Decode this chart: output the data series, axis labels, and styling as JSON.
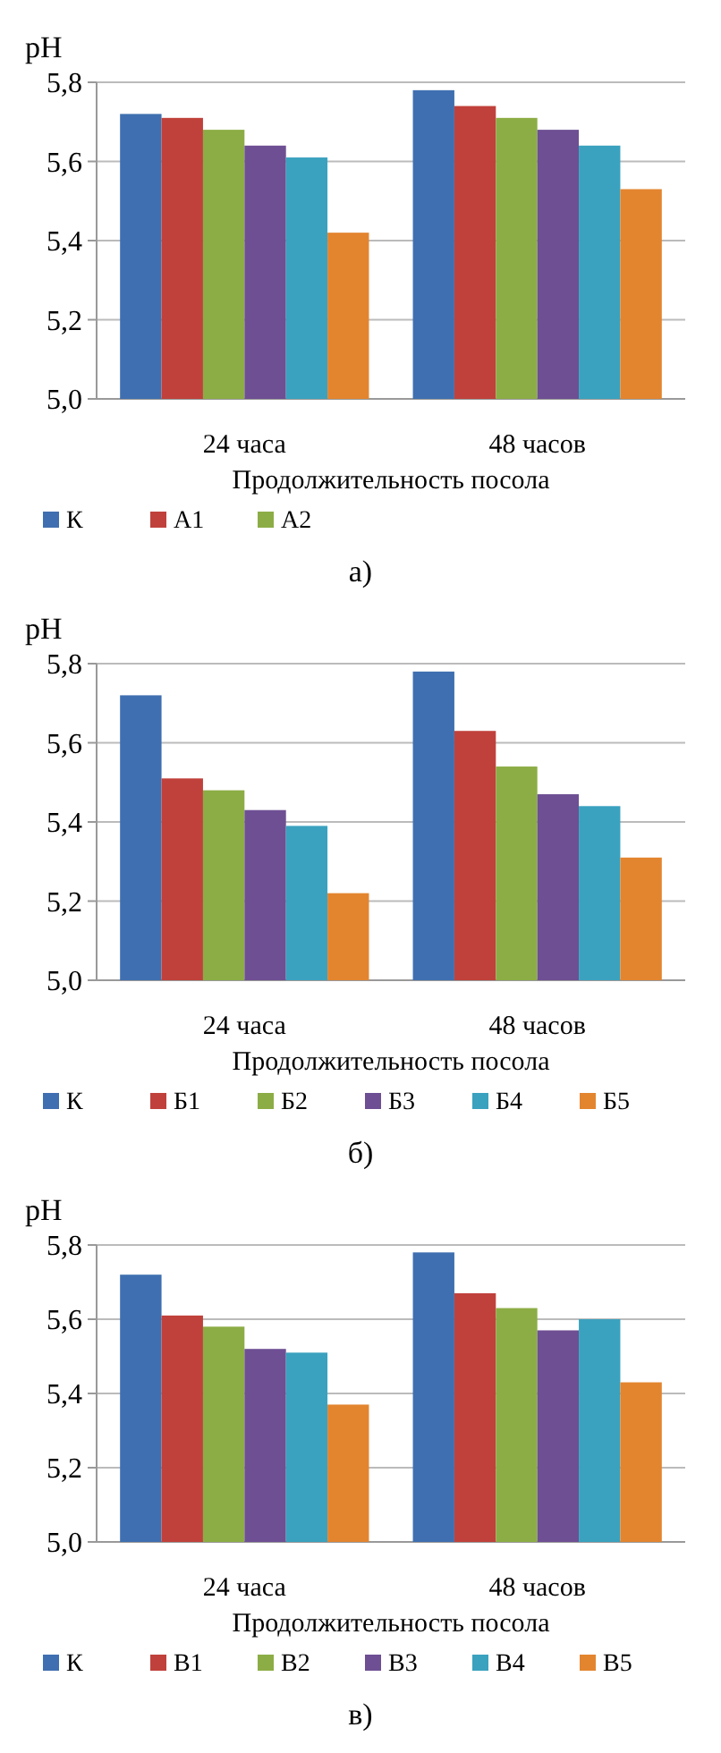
{
  "chart_data": [
    {
      "type": "bar",
      "ylabel": "pH",
      "xlabel": "Продолжительность посола",
      "categories": [
        "24 часа",
        "48 часов"
      ],
      "ylim": [
        5.0,
        5.8
      ],
      "yticks": [
        {
          "value": 5.0,
          "label": "5,0"
        },
        {
          "value": 5.2,
          "label": "5,2"
        },
        {
          "value": 5.4,
          "label": "5,4"
        },
        {
          "value": 5.6,
          "label": "5,6"
        },
        {
          "value": 5.8,
          "label": "5,8"
        }
      ],
      "grid": "y",
      "legend": "bottom",
      "annotations": [
        "а)"
      ],
      "series": [
        {
          "name": "К",
          "color": "#3f6fb0",
          "values": [
            5.72,
            5.78
          ]
        },
        {
          "name": "А1",
          "color": "#c0413b",
          "values": [
            5.71,
            5.74
          ]
        },
        {
          "name": "А2",
          "color": "#8cad45",
          "values": [
            5.68,
            5.71
          ]
        },
        {
          "color": "#6e4f93",
          "values": [
            5.64,
            5.68
          ]
        },
        {
          "color": "#3aa2bf",
          "values": [
            5.61,
            5.64
          ]
        },
        {
          "color": "#e3852f",
          "values": [
            5.42,
            5.53
          ]
        }
      ]
    },
    {
      "type": "bar",
      "ylabel": "pH",
      "xlabel": "Продолжительность посола",
      "categories": [
        "24 часа",
        "48 часов"
      ],
      "ylim": [
        5.0,
        5.8
      ],
      "yticks": [
        {
          "value": 5.0,
          "label": "5,0"
        },
        {
          "value": 5.2,
          "label": "5,2"
        },
        {
          "value": 5.4,
          "label": "5,4"
        },
        {
          "value": 5.6,
          "label": "5,6"
        },
        {
          "value": 5.8,
          "label": "5,8"
        }
      ],
      "grid": "y",
      "legend": "bottom",
      "annotations": [
        "б)"
      ],
      "series": [
        {
          "name": "К",
          "color": "#3f6fb0",
          "values": [
            5.72,
            5.78
          ]
        },
        {
          "name": "Б1",
          "color": "#c0413b",
          "values": [
            5.51,
            5.63
          ]
        },
        {
          "name": "Б2",
          "color": "#8cad45",
          "values": [
            5.48,
            5.54
          ]
        },
        {
          "name": "Б3",
          "color": "#6e4f93",
          "values": [
            5.43,
            5.47
          ]
        },
        {
          "name": "Б4",
          "color": "#3aa2bf",
          "values": [
            5.39,
            5.44
          ]
        },
        {
          "name": "Б5",
          "color": "#e3852f",
          "values": [
            5.22,
            5.31
          ]
        }
      ]
    },
    {
      "type": "bar",
      "ylabel": "pH",
      "xlabel": "Продолжительность посола",
      "categories": [
        "24 часа",
        "48 часов"
      ],
      "ylim": [
        5.0,
        5.8
      ],
      "yticks": [
        {
          "value": 5.0,
          "label": "5,0"
        },
        {
          "value": 5.2,
          "label": "5,2"
        },
        {
          "value": 5.4,
          "label": "5,4"
        },
        {
          "value": 5.6,
          "label": "5,6"
        },
        {
          "value": 5.8,
          "label": "5,8"
        }
      ],
      "grid": "y",
      "legend": "bottom",
      "annotations": [
        "в)"
      ],
      "series": [
        {
          "name": "К",
          "color": "#3f6fb0",
          "values": [
            5.72,
            5.78
          ]
        },
        {
          "name": "В1",
          "color": "#c0413b",
          "values": [
            5.61,
            5.67
          ]
        },
        {
          "name": "В2",
          "color": "#8cad45",
          "values": [
            5.58,
            5.63
          ]
        },
        {
          "name": "В3",
          "color": "#6e4f93",
          "values": [
            5.52,
            5.57
          ]
        },
        {
          "name": "В4",
          "color": "#3aa2bf",
          "values": [
            5.51,
            5.6
          ]
        },
        {
          "name": "В5",
          "color": "#e3852f",
          "values": [
            5.37,
            5.43
          ]
        }
      ]
    }
  ]
}
